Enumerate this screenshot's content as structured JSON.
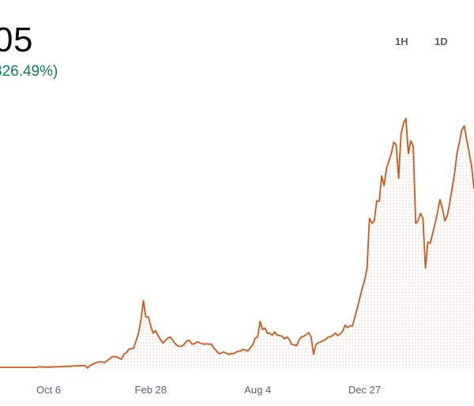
{
  "header": {
    "price_visible": "05",
    "change_visible": "326.49%)"
  },
  "range_buttons": [
    {
      "label": "1H"
    },
    {
      "label": "1D"
    }
  ],
  "colors": {
    "line": "#d5561a",
    "fill_dots": "#f4c6ad",
    "change_positive": "#098551"
  },
  "chart_data": {
    "type": "area",
    "xticks": [
      "Oct 6",
      "Feb 28",
      "Aug 4",
      "Dec 27"
    ],
    "xtick_index": [
      20,
      62,
      106,
      150
    ],
    "ylim": [
      0,
      1
    ],
    "values": [
      0.003,
      0.003,
      0.003,
      0.003,
      0.003,
      0.003,
      0.003,
      0.003,
      0.003,
      0.003,
      0.003,
      0.003,
      0.003,
      0.003,
      0.003,
      0.003,
      0.005,
      0.005,
      0.004,
      0.004,
      0.004,
      0.004,
      0.005,
      0.005,
      0.005,
      0.006,
      0.006,
      0.007,
      0.007,
      0.007,
      0.008,
      0.009,
      0.009,
      0.009,
      0.01,
      0.01,
      0.0,
      0.01,
      0.015,
      0.02,
      0.023,
      0.025,
      0.025,
      0.022,
      0.03,
      0.035,
      0.045,
      0.046,
      0.045,
      0.04,
      0.035,
      0.055,
      0.062,
      0.075,
      0.078,
      0.08,
      0.11,
      0.14,
      0.195,
      0.27,
      0.205,
      0.205,
      0.17,
      0.14,
      0.15,
      0.13,
      0.115,
      0.1,
      0.11,
      0.12,
      0.125,
      0.112,
      0.098,
      0.09,
      0.087,
      0.088,
      0.098,
      0.11,
      0.11,
      0.096,
      0.098,
      0.105,
      0.102,
      0.098,
      0.096,
      0.097,
      0.096,
      0.096,
      0.08,
      0.07,
      0.058,
      0.06,
      0.065,
      0.06,
      0.055,
      0.058,
      0.058,
      0.063,
      0.068,
      0.068,
      0.075,
      0.072,
      0.068,
      0.082,
      0.093,
      0.12,
      0.125,
      0.187,
      0.155,
      0.16,
      0.14,
      0.14,
      0.132,
      0.145,
      0.132,
      0.13,
      0.128,
      0.117,
      0.125,
      0.115,
      0.095,
      0.093,
      0.09,
      0.112,
      0.125,
      0.128,
      0.134,
      0.142,
      0.125,
      0.055,
      0.095,
      0.102,
      0.105,
      0.11,
      0.115,
      0.125,
      0.125,
      0.133,
      0.14,
      0.13,
      0.138,
      0.148,
      0.172,
      0.162,
      0.17,
      0.168,
      0.205,
      0.24,
      0.28,
      0.32,
      0.35,
      0.4,
      0.6,
      0.58,
      0.59,
      0.67,
      0.668,
      0.77,
      0.73,
      0.8,
      0.83,
      0.86,
      0.905,
      0.895,
      0.76,
      0.94,
      0.98,
      1.0,
      0.86,
      0.91,
      0.89,
      0.58,
      0.59,
      0.62,
      0.6,
      0.4,
      0.505,
      0.5,
      0.54,
      0.58,
      0.625,
      0.675,
      0.64,
      0.59,
      0.61,
      0.66,
      0.72,
      0.78,
      0.86,
      0.905,
      0.955,
      0.97,
      0.915,
      0.865,
      0.81,
      0.72
    ]
  }
}
